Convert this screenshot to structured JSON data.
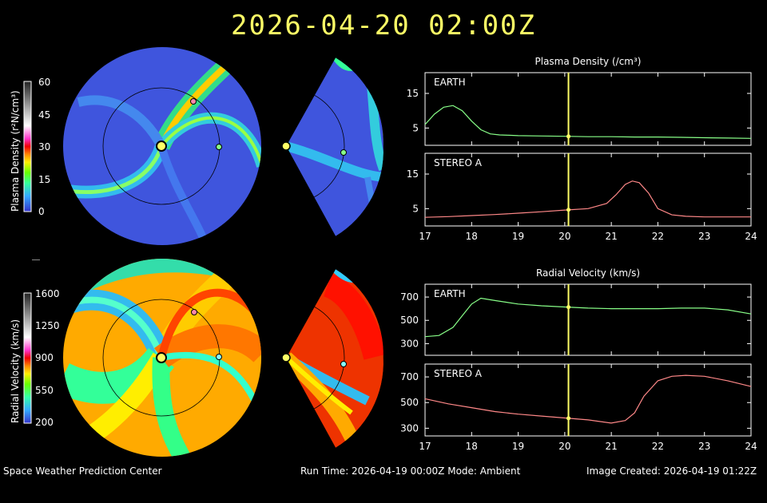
{
  "header": {
    "timestamp": "2026-04-20  02:00Z"
  },
  "footer": {
    "org": "Space Weather Prediction Center",
    "run": "Run Time: 2026-04-19 00:00Z  Mode: Ambient",
    "created": "Image Created: 2026-04-19 01:22Z"
  },
  "colorbars": {
    "density": {
      "label": "Plasma Density (r²N/cm³)",
      "ticks": [
        "60",
        "45",
        "30",
        "15",
        "0"
      ]
    },
    "velocity": {
      "label": "Radial Velocity (km/s)",
      "ticks": [
        "1600",
        "1250",
        "900",
        "550",
        "200"
      ]
    }
  },
  "colors": {
    "earth": "#88ff88",
    "stereo": "#ff8888",
    "marker": "#ffff66"
  },
  "chart_data": [
    {
      "type": "line",
      "title": "Plasma Density (/cm³)",
      "panels": [
        {
          "name": "EARTH",
          "yticks": [
            5,
            15
          ],
          "ylim": [
            0,
            21
          ],
          "x": [
            17,
            17.2,
            17.4,
            17.6,
            17.8,
            18.0,
            18.2,
            18.4,
            18.6,
            18.8,
            19.0,
            19.5,
            20.0,
            20.5,
            21.0,
            21.5,
            22.0,
            22.5,
            23.0,
            23.5,
            24.0
          ],
          "y": [
            6,
            9,
            11,
            11.5,
            10,
            7,
            4.5,
            3.3,
            3,
            2.9,
            2.8,
            2.7,
            2.6,
            2.5,
            2.5,
            2.4,
            2.4,
            2.3,
            2.2,
            2.1,
            2.0
          ]
        },
        {
          "name": "STEREO A",
          "yticks": [
            5,
            15
          ],
          "ylim": [
            0,
            21
          ],
          "x": [
            17,
            17.5,
            18.0,
            18.5,
            19.0,
            19.5,
            20.0,
            20.5,
            20.9,
            21.1,
            21.3,
            21.45,
            21.6,
            21.8,
            22.0,
            22.3,
            22.6,
            23.0,
            23.5,
            24.0
          ],
          "y": [
            2.5,
            2.7,
            3.0,
            3.3,
            3.7,
            4.1,
            4.6,
            5.0,
            6.5,
            9.0,
            12.0,
            13.0,
            12.5,
            9.5,
            5.0,
            3.2,
            2.8,
            2.6,
            2.6,
            2.6
          ]
        }
      ],
      "xticks": [
        17,
        18,
        19,
        20,
        21,
        22,
        23,
        24
      ],
      "xlim": [
        17,
        24
      ],
      "current_x": 20.08
    },
    {
      "type": "line",
      "title": "Radial Velocity (km/s)",
      "panels": [
        {
          "name": "EARTH",
          "yticks": [
            300,
            500,
            700
          ],
          "ylim": [
            200,
            810
          ],
          "x": [
            17,
            17.3,
            17.6,
            17.8,
            18.0,
            18.2,
            18.5,
            19.0,
            19.5,
            20.0,
            20.5,
            21.0,
            21.5,
            22.0,
            22.5,
            23.0,
            23.5,
            24.0
          ],
          "y": [
            360,
            370,
            440,
            540,
            640,
            690,
            670,
            640,
            625,
            615,
            605,
            600,
            600,
            600,
            605,
            605,
            590,
            555
          ]
        },
        {
          "name": "STEREO A",
          "yticks": [
            300,
            500,
            700
          ],
          "ylim": [
            240,
            800
          ],
          "x": [
            17,
            17.5,
            18.0,
            18.5,
            19.0,
            19.5,
            20.0,
            20.5,
            21.0,
            21.3,
            21.5,
            21.7,
            22.0,
            22.3,
            22.6,
            23.0,
            23.5,
            24.0
          ],
          "y": [
            530,
            490,
            460,
            430,
            410,
            395,
            380,
            365,
            340,
            360,
            420,
            550,
            670,
            705,
            712,
            705,
            670,
            625
          ]
        }
      ],
      "xticks": [
        17,
        18,
        19,
        20,
        21,
        22,
        23,
        24
      ],
      "xlim": [
        17,
        24
      ],
      "current_x": 20.08
    }
  ]
}
